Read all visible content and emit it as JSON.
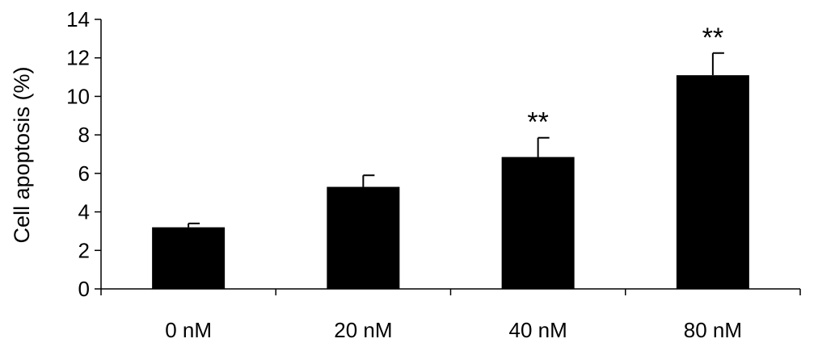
{
  "chart_data": {
    "type": "bar",
    "categories": [
      "0 nM",
      "20 nM",
      "40 nM",
      "80 nM"
    ],
    "values": [
      3.2,
      5.3,
      6.85,
      11.1
    ],
    "errors": [
      0.2,
      0.6,
      1.0,
      1.15
    ],
    "annotations": [
      "",
      "",
      "**",
      "**"
    ],
    "title": "",
    "xlabel": "",
    "ylabel": "Cell apoptosis (%)",
    "ylim": [
      0,
      14
    ],
    "yticks": [
      0,
      2,
      4,
      6,
      8,
      10,
      12,
      14
    ],
    "grid": false,
    "bar_color": "#000000"
  }
}
